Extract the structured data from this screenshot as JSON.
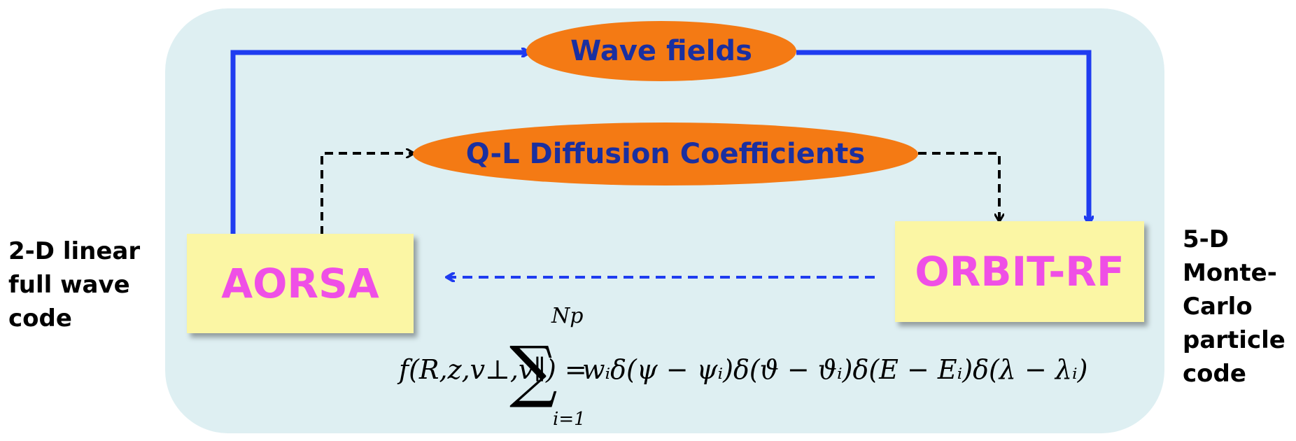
{
  "nodes": {
    "wave_fields": "Wave fields",
    "ql_diffusion": "Q-L Diffusion Coefficients",
    "aorsa": "AORSA",
    "orbit_rf": "ORBIT-RF"
  },
  "left_label": [
    "2-D linear",
    "full wave",
    "code"
  ],
  "right_label": [
    "5-D",
    "Monte-",
    "Carlo",
    "particle",
    "code"
  ],
  "formula": {
    "lhs": "f(R,z,v⊥,v∥) =",
    "sum_symbol": "∑",
    "sum_upper": "Np",
    "sum_lower": "i=1",
    "rhs": "wᵢδ(ψ − ψᵢ)δ(ϑ − ϑᵢ)δ(E − Eᵢ)δ(λ − λᵢ)"
  },
  "colors": {
    "panel": "#deeff2",
    "ellipse_fill": "#f47a14",
    "ellipse_text": "#1a2fa0",
    "box_fill": "#fbf6a4",
    "box_text": "#ef4fe6",
    "blue_arrow": "#1f3cf0",
    "dashed_arrow": "#000000"
  }
}
